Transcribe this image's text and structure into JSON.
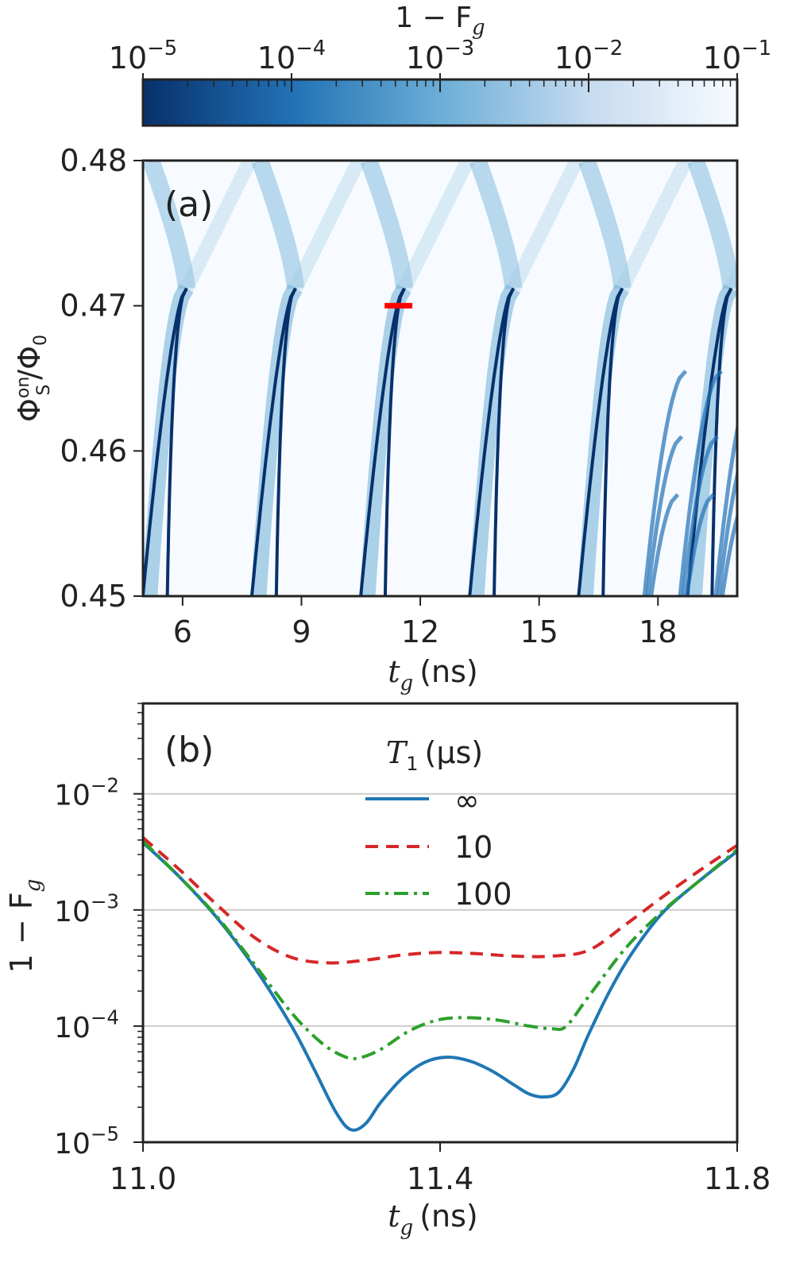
{
  "chart_data": [
    {
      "panel": "colorbar",
      "type": "colorbar",
      "orientation": "horizontal",
      "scale": "log",
      "label": "1 − F",
      "label_subscript": "g",
      "range": [
        1e-05,
        0.1
      ],
      "tick_values": [
        1e-05,
        0.0001,
        0.001,
        0.01,
        0.1
      ],
      "tick_labels": [
        {
          "base": "10",
          "exp": "−5"
        },
        {
          "base": "10",
          "exp": "−4"
        },
        {
          "base": "10",
          "exp": "−3"
        },
        {
          "base": "10",
          "exp": "−2"
        },
        {
          "base": "10",
          "exp": "−1"
        }
      ],
      "colors": [
        "#08306b",
        "#2171b5",
        "#6baed6",
        "#c6dbef",
        "#f7fbff"
      ]
    },
    {
      "panel": "(a)",
      "type": "heatmap",
      "panel_label": "(a)",
      "xlabel_var": "t",
      "xlabel_sub": "g",
      "xlabel_unit": "(ns)",
      "ylabel_var": "Φ",
      "ylabel_sub": "S",
      "ylabel_sup": "on",
      "ylabel_den": "/Φ",
      "ylabel_den_sub": "0",
      "xlim": [
        5,
        20
      ],
      "ylim": [
        0.45,
        0.48
      ],
      "x_ticks": [
        6,
        9,
        12,
        15,
        18
      ],
      "x_tick_labels": [
        "6",
        "9",
        "12",
        "15",
        "18"
      ],
      "y_ticks": [
        0.45,
        0.46,
        0.47,
        0.48
      ],
      "y_tick_labels": [
        "0.45",
        "0.46",
        "0.47",
        "0.48"
      ],
      "resonance_arcs_k": [
        1,
        2,
        3,
        4,
        5,
        6
      ],
      "marker": {
        "x": [
          11.1,
          11.8
        ],
        "y": 0.47,
        "color": "#ff0000"
      }
    },
    {
      "panel": "(b)",
      "type": "line",
      "panel_label": "(b)",
      "xlabel_var": "t",
      "xlabel_sub": "g",
      "xlabel_unit": "(ns)",
      "ylabel": "1 − F",
      "ylabel_sub": "g",
      "yscale": "log",
      "xlim": [
        11.0,
        11.8
      ],
      "ylim": [
        1e-05,
        0.06
      ],
      "grid": "horizontal",
      "x_ticks": [
        11.0,
        11.4,
        11.8
      ],
      "x_tick_labels": [
        "11.0",
        "11.4",
        "11.8"
      ],
      "y_ticks": [
        1e-05,
        0.0001,
        0.001,
        0.01
      ],
      "y_tick_labels": [
        {
          "base": "10",
          "exp": "−5"
        },
        {
          "base": "10",
          "exp": "−4"
        },
        {
          "base": "10",
          "exp": "−3"
        },
        {
          "base": "10",
          "exp": "−2"
        }
      ],
      "legend_title_var": "T",
      "legend_title_sub": "1",
      "legend_title_unit": "(µs)",
      "legend_position": "upper-center",
      "series": [
        {
          "name": "∞",
          "color": "#1f77b4",
          "dash": "solid",
          "x": [
            11.0,
            11.05,
            11.1,
            11.15,
            11.2,
            11.23,
            11.26,
            11.28,
            11.3,
            11.32,
            11.35,
            11.38,
            11.41,
            11.44,
            11.47,
            11.5,
            11.52,
            11.54,
            11.56,
            11.58,
            11.6,
            11.63,
            11.66,
            11.7,
            11.75,
            11.8
          ],
          "y": [
            0.0038,
            0.0019,
            0.00085,
            0.00032,
            0.0001,
            4.3e-05,
            1.8e-05,
            1.28e-05,
            1.45e-05,
            2.2e-05,
            3.6e-05,
            4.9e-05,
            5.4e-05,
            5e-05,
            4.1e-05,
            3.1e-05,
            2.6e-05,
            2.45e-05,
            2.7e-05,
            4.3e-05,
            8.5e-05,
            0.00021,
            0.00044,
            0.00095,
            0.0018,
            0.0032
          ]
        },
        {
          "name": "10",
          "color": "#d62728",
          "dash": "dashed",
          "x": [
            11.0,
            11.05,
            11.1,
            11.15,
            11.2,
            11.25,
            11.3,
            11.35,
            11.4,
            11.45,
            11.5,
            11.55,
            11.6,
            11.65,
            11.7,
            11.75,
            11.8
          ],
          "y": [
            0.0042,
            0.0022,
            0.0011,
            0.00058,
            0.00039,
            0.00035,
            0.00037,
            0.00041,
            0.00043,
            0.00042,
            0.0004,
            0.0004,
            0.00045,
            0.00075,
            0.0013,
            0.0022,
            0.0036
          ]
        },
        {
          "name": "100",
          "color": "#2ca02c",
          "dash": "dashdot",
          "x": [
            11.0,
            11.05,
            11.1,
            11.15,
            11.2,
            11.24,
            11.27,
            11.29,
            11.32,
            11.36,
            11.4,
            11.44,
            11.48,
            11.52,
            11.55,
            11.57,
            11.6,
            11.65,
            11.7,
            11.75,
            11.8
          ],
          "y": [
            0.0039,
            0.0019,
            0.00087,
            0.00034,
            0.00013,
            7.2e-05,
            5.5e-05,
            5.3e-05,
            6.3e-05,
            9.2e-05,
            0.000114,
            0.000118,
            0.000112,
            0.0001,
            9.5e-05,
            0.0001,
            0.00018,
            0.00047,
            0.00098,
            0.0018,
            0.0033
          ]
        }
      ]
    }
  ]
}
